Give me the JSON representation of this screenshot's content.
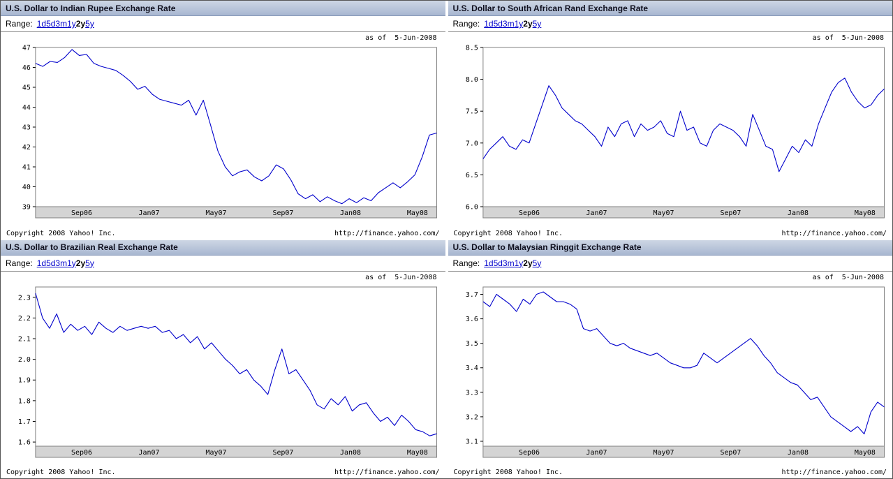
{
  "page": {
    "range_label": "Range:",
    "range_options": [
      "1d",
      "5d",
      "3m",
      "1y",
      "2y",
      "5y"
    ],
    "selected_range": "2y",
    "accent_link_color": "#0000cc"
  },
  "chart_data": [
    {
      "type": "line",
      "title": "U.S. Dollar to Indian Rupee Exchange Rate",
      "as_of": "as of  5-Jun-2008",
      "copyright": "Copyright 2008 Yahoo! Inc.",
      "url": "http://finance.yahoo.com/",
      "line_color": "#0000cc",
      "ylim": [
        39,
        47
      ],
      "yticks": [
        "47",
        "46",
        "45",
        "44",
        "43",
        "42",
        "41",
        "40",
        "39"
      ],
      "xticks": [
        {
          "label": "Sep06",
          "pos": 0.115
        },
        {
          "label": "Jan07",
          "pos": 0.283
        },
        {
          "label": "May07",
          "pos": 0.45
        },
        {
          "label": "Sep07",
          "pos": 0.617
        },
        {
          "label": "Jan08",
          "pos": 0.785
        },
        {
          "label": "May08",
          "pos": 0.952
        }
      ],
      "values": [
        46.2,
        46.05,
        46.3,
        46.25,
        46.5,
        46.9,
        46.6,
        46.65,
        46.2,
        46.05,
        45.95,
        45.85,
        45.6,
        45.3,
        44.9,
        45.05,
        44.65,
        44.4,
        44.3,
        44.2,
        44.1,
        44.35,
        43.6,
        44.35,
        43.1,
        41.8,
        41.0,
        40.55,
        40.75,
        40.85,
        40.5,
        40.3,
        40.55,
        41.1,
        40.9,
        40.35,
        39.65,
        39.4,
        39.6,
        39.25,
        39.5,
        39.3,
        39.15,
        39.4,
        39.2,
        39.45,
        39.3,
        39.7,
        39.95,
        40.2,
        39.95,
        40.25,
        40.6,
        41.5,
        42.6,
        42.7
      ]
    },
    {
      "type": "line",
      "title": "U.S. Dollar to South African Rand Exchange Rate",
      "as_of": "as of  5-Jun-2008",
      "copyright": "Copyright 2008 Yahoo! Inc.",
      "url": "http://finance.yahoo.com/",
      "line_color": "#0000cc",
      "ylim": [
        6.0,
        8.5
      ],
      "yticks": [
        "8.5",
        "8.0",
        "7.5",
        "7.0",
        "6.5",
        "6.0"
      ],
      "xticks": [
        {
          "label": "Sep06",
          "pos": 0.115
        },
        {
          "label": "Jan07",
          "pos": 0.283
        },
        {
          "label": "May07",
          "pos": 0.45
        },
        {
          "label": "Sep07",
          "pos": 0.617
        },
        {
          "label": "Jan08",
          "pos": 0.785
        },
        {
          "label": "May08",
          "pos": 0.952
        }
      ],
      "values": [
        6.75,
        6.9,
        7.0,
        7.1,
        6.95,
        6.9,
        7.05,
        7.0,
        7.3,
        7.6,
        7.9,
        7.75,
        7.55,
        7.45,
        7.35,
        7.3,
        7.2,
        7.1,
        6.95,
        7.25,
        7.1,
        7.3,
        7.35,
        7.1,
        7.3,
        7.2,
        7.25,
        7.35,
        7.15,
        7.1,
        7.5,
        7.2,
        7.25,
        7.0,
        6.95,
        7.2,
        7.3,
        7.25,
        7.2,
        7.1,
        6.95,
        7.45,
        7.2,
        6.95,
        6.9,
        6.55,
        6.75,
        6.95,
        6.85,
        7.05,
        6.95,
        7.3,
        7.55,
        7.8,
        7.95,
        8.02,
        7.8,
        7.65,
        7.55,
        7.6,
        7.75,
        7.85
      ]
    },
    {
      "type": "line",
      "title": "U.S. Dollar to Brazilian Real Exchange Rate",
      "as_of": "as of  5-Jun-2008",
      "copyright": "Copyright 2008 Yahoo! Inc.",
      "url": "http://finance.yahoo.com/",
      "line_color": "#0000cc",
      "ylim": [
        1.58,
        2.35
      ],
      "yticks": [
        "2.3",
        "2.2",
        "2.1",
        "2.0",
        "1.9",
        "1.8",
        "1.7",
        "1.6"
      ],
      "xticks": [
        {
          "label": "Sep06",
          "pos": 0.115
        },
        {
          "label": "Jan07",
          "pos": 0.283
        },
        {
          "label": "May07",
          "pos": 0.45
        },
        {
          "label": "Sep07",
          "pos": 0.617
        },
        {
          "label": "Jan08",
          "pos": 0.785
        },
        {
          "label": "May08",
          "pos": 0.952
        }
      ],
      "values": [
        2.32,
        2.2,
        2.15,
        2.22,
        2.13,
        2.17,
        2.14,
        2.16,
        2.12,
        2.18,
        2.15,
        2.13,
        2.16,
        2.14,
        2.15,
        2.16,
        2.15,
        2.16,
        2.13,
        2.14,
        2.1,
        2.12,
        2.08,
        2.11,
        2.05,
        2.08,
        2.04,
        2.0,
        1.97,
        1.93,
        1.95,
        1.9,
        1.87,
        1.83,
        1.95,
        2.05,
        1.93,
        1.95,
        1.9,
        1.85,
        1.78,
        1.76,
        1.81,
        1.78,
        1.82,
        1.75,
        1.78,
        1.79,
        1.74,
        1.7,
        1.72,
        1.68,
        1.73,
        1.7,
        1.66,
        1.65,
        1.63,
        1.64
      ]
    },
    {
      "type": "line",
      "title": "U.S. Dollar to Malaysian Ringgit Exchange Rate",
      "as_of": "as of  5-Jun-2008",
      "copyright": "Copyright 2008 Yahoo! Inc.",
      "url": "http://finance.yahoo.com/",
      "line_color": "#0000cc",
      "ylim": [
        3.08,
        3.73
      ],
      "yticks": [
        "3.7",
        "3.6",
        "3.5",
        "3.4",
        "3.3",
        "3.2",
        "3.1"
      ],
      "xticks": [
        {
          "label": "Sep06",
          "pos": 0.115
        },
        {
          "label": "Jan07",
          "pos": 0.283
        },
        {
          "label": "May07",
          "pos": 0.45
        },
        {
          "label": "Sep07",
          "pos": 0.617
        },
        {
          "label": "Jan08",
          "pos": 0.785
        },
        {
          "label": "May08",
          "pos": 0.952
        }
      ],
      "values": [
        3.67,
        3.65,
        3.7,
        3.68,
        3.66,
        3.63,
        3.68,
        3.66,
        3.7,
        3.71,
        3.69,
        3.67,
        3.67,
        3.66,
        3.64,
        3.56,
        3.55,
        3.56,
        3.53,
        3.5,
        3.49,
        3.5,
        3.48,
        3.47,
        3.46,
        3.45,
        3.46,
        3.44,
        3.42,
        3.41,
        3.4,
        3.4,
        3.41,
        3.46,
        3.44,
        3.42,
        3.44,
        3.46,
        3.48,
        3.5,
        3.52,
        3.49,
        3.45,
        3.42,
        3.38,
        3.36,
        3.34,
        3.33,
        3.3,
        3.27,
        3.28,
        3.24,
        3.2,
        3.18,
        3.16,
        3.14,
        3.16,
        3.13,
        3.22,
        3.26,
        3.24
      ]
    }
  ]
}
